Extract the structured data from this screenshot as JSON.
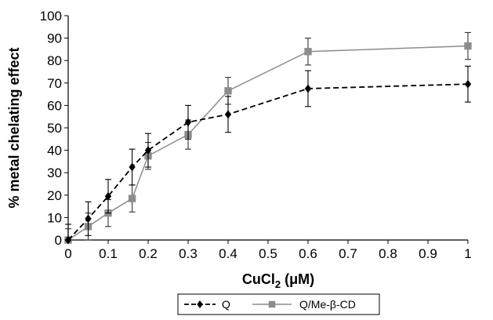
{
  "chart_data": {
    "type": "line",
    "title": "",
    "xlabel": {
      "base": "CuCl",
      "sub": "2",
      "rest": " (μM)"
    },
    "ylabel": "% metal chelating effect",
    "xlim": [
      0,
      1
    ],
    "ylim": [
      0,
      100
    ],
    "x_ticks": [
      "0",
      "0.1",
      "0.2",
      "0.3",
      "0.4",
      "0.5",
      "0.6",
      "0.7",
      "0.8",
      "0.9",
      "1"
    ],
    "y_ticks": [
      "0",
      "10",
      "20",
      "30",
      "40",
      "50",
      "60",
      "70",
      "80",
      "90",
      "100"
    ],
    "grid": false,
    "legend_position": "bottom",
    "series": [
      {
        "name": "Q",
        "color": "#000000",
        "line_style": "dashed",
        "marker": "diamond",
        "points": [
          {
            "x": 0,
            "y": 0,
            "err": 7
          },
          {
            "x": 0.05,
            "y": 9.5,
            "err": 7.5
          },
          {
            "x": 0.1,
            "y": 19.5,
            "err": 7.5
          },
          {
            "x": 0.16,
            "y": 32.5,
            "err": 8
          },
          {
            "x": 0.2,
            "y": 40,
            "err": 7.5
          },
          {
            "x": 0.3,
            "y": 52.5,
            "err": 7.5
          },
          {
            "x": 0.4,
            "y": 56,
            "err": 8
          },
          {
            "x": 0.6,
            "y": 67.5,
            "err": 8
          },
          {
            "x": 1,
            "y": 69.5,
            "err": 8
          }
        ]
      },
      {
        "name": "Q/Me-β-CD",
        "color": "#8c8c8c",
        "line_style": "solid",
        "marker": "square",
        "points": [
          {
            "x": 0,
            "y": 0,
            "err": 5
          },
          {
            "x": 0.05,
            "y": 6,
            "err": 6
          },
          {
            "x": 0.1,
            "y": 12,
            "err": 6
          },
          {
            "x": 0.16,
            "y": 18.5,
            "err": 6
          },
          {
            "x": 0.2,
            "y": 37.5,
            "err": 6
          },
          {
            "x": 0.3,
            "y": 47,
            "err": 6.5
          },
          {
            "x": 0.4,
            "y": 66.5,
            "err": 6
          },
          {
            "x": 0.6,
            "y": 84,
            "err": 6
          },
          {
            "x": 1,
            "y": 86.5,
            "err": 6
          }
        ]
      }
    ]
  }
}
